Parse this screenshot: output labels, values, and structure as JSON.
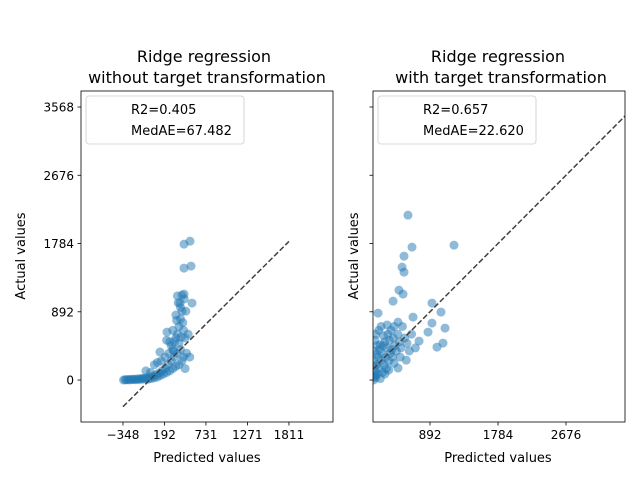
{
  "chart_data": [
    {
      "type": "scatter",
      "title": "Ridge regression\nwithout target transformation",
      "xlabel": "Predicted values",
      "ylabel": "Actual values",
      "xlim": [
        -894,
        2384
      ],
      "ylim": [
        -548,
        3777
      ],
      "xticks": [
        -348,
        192,
        731,
        1271,
        1811
      ],
      "yticks": [
        0,
        892,
        1784,
        2676,
        3568
      ],
      "legend": {
        "placement": "top-left",
        "entries": [
          "R2=0.405",
          "MedAE=67.482"
        ]
      },
      "point_color": "#1f77b4",
      "point_alpha": 0.5,
      "diagonal": {
        "from": -348,
        "to": 1811,
        "style": "dashed",
        "color": "#404040"
      },
      "points": [
        [
          -340,
          0
        ],
        [
          -320,
          5
        ],
        [
          -300,
          3
        ],
        [
          -280,
          8
        ],
        [
          -260,
          2
        ],
        [
          -240,
          10
        ],
        [
          -220,
          6
        ],
        [
          -200,
          12
        ],
        [
          -180,
          4
        ],
        [
          -160,
          15
        ],
        [
          -140,
          8
        ],
        [
          -120,
          20
        ],
        [
          -100,
          10
        ],
        [
          -80,
          25
        ],
        [
          -60,
          15
        ],
        [
          -40,
          30
        ],
        [
          -20,
          12
        ],
        [
          0,
          40
        ],
        [
          20,
          20
        ],
        [
          40,
          50
        ],
        [
          60,
          30
        ],
        [
          80,
          70
        ],
        [
          100,
          40
        ],
        [
          120,
          90
        ],
        [
          140,
          60
        ],
        [
          160,
          120
        ],
        [
          180,
          80
        ],
        [
          200,
          150
        ],
        [
          220,
          100
        ],
        [
          240,
          200
        ],
        [
          260,
          120
        ],
        [
          280,
          250
        ],
        [
          300,
          150
        ],
        [
          320,
          300
        ],
        [
          340,
          180
        ],
        [
          360,
          350
        ],
        [
          380,
          200
        ],
        [
          400,
          400
        ],
        [
          420,
          250
        ],
        [
          440,
          300
        ],
        [
          460,
          150
        ],
        [
          300,
          400
        ],
        [
          320,
          500
        ],
        [
          340,
          550
        ],
        [
          360,
          600
        ],
        [
          380,
          700
        ],
        [
          400,
          800
        ],
        [
          420,
          900
        ],
        [
          440,
          650
        ],
        [
          460,
          550
        ],
        [
          480,
          350
        ],
        [
          -50,
          120
        ],
        [
          10,
          100
        ],
        [
          60,
          200
        ],
        [
          100,
          230
        ],
        [
          150,
          250
        ],
        [
          200,
          300
        ],
        [
          250,
          350
        ],
        [
          280,
          450
        ],
        [
          133,
          366
        ],
        [
          225,
          627
        ],
        [
          220,
          520
        ],
        [
          300,
          650
        ],
        [
          340,
          850
        ],
        [
          370,
          1010
        ],
        [
          394,
          1006
        ],
        [
          550,
          1006
        ],
        [
          446,
          1123
        ],
        [
          420,
          1110
        ],
        [
          450,
          1060
        ],
        [
          470,
          900
        ],
        [
          500,
          600
        ],
        [
          520,
          300
        ],
        [
          446,
          1463
        ],
        [
          537,
          1489
        ],
        [
          446,
          1776
        ],
        [
          524,
          1815
        ],
        [
          350,
          780
        ],
        [
          400,
          950
        ],
        [
          360,
          1100
        ],
        [
          430,
          750
        ],
        [
          260,
          500
        ],
        [
          310,
          380
        ],
        [
          380,
          480
        ],
        [
          410,
          560
        ]
      ]
    },
    {
      "type": "scatter",
      "title": "Ridge regression\nwith target transformation",
      "xlabel": "Predicted values",
      "ylabel": "Actual values",
      "xlim": [
        144,
        3450
      ],
      "ylim": [
        -548,
        3777
      ],
      "xticks": [
        892,
        1784,
        2676
      ],
      "yticks": [
        0,
        892,
        1784,
        2676,
        3568
      ],
      "legend": {
        "placement": "top-left",
        "entries": [
          "R2=0.657",
          "MedAE=22.620"
        ]
      },
      "point_color": "#1f77b4",
      "point_alpha": 0.5,
      "diagonal": {
        "from": 144,
        "to": 3450,
        "style": "dashed",
        "color": "#404040"
      },
      "points": [
        [
          603,
          2155
        ],
        [
          656,
          1737
        ],
        [
          1207,
          1763
        ],
        [
          551,
          1619
        ],
        [
          525,
          1475
        ],
        [
          551,
          1410
        ],
        [
          485,
          1175
        ],
        [
          538,
          1123
        ],
        [
          407,
          1031
        ],
        [
          210,
          875
        ],
        [
          918,
          1006
        ],
        [
          1036,
          888
        ],
        [
          918,
          744
        ],
        [
          1089,
          679
        ],
        [
          866,
          627
        ],
        [
          748,
          509
        ],
        [
          1062,
          483
        ],
        [
          984,
          431
        ],
        [
          472,
          157
        ],
        [
          669,
          823
        ],
        [
          472,
          757
        ],
        [
          150,
          0
        ],
        [
          160,
          50
        ],
        [
          170,
          120
        ],
        [
          180,
          30
        ],
        [
          190,
          200
        ],
        [
          200,
          80
        ],
        [
          210,
          300
        ],
        [
          220,
          150
        ],
        [
          230,
          400
        ],
        [
          240,
          20
        ],
        [
          250,
          250
        ],
        [
          260,
          350
        ],
        [
          270,
          100
        ],
        [
          280,
          450
        ],
        [
          290,
          200
        ],
        [
          300,
          500
        ],
        [
          310,
          300
        ],
        [
          320,
          150
        ],
        [
          330,
          420
        ],
        [
          340,
          600
        ],
        [
          350,
          250
        ],
        [
          360,
          520
        ],
        [
          370,
          350
        ],
        [
          380,
          650
        ],
        [
          390,
          400
        ],
        [
          400,
          300
        ],
        [
          410,
          550
        ],
        [
          420,
          700
        ],
        [
          430,
          450
        ],
        [
          450,
          380
        ],
        [
          470,
          600
        ],
        [
          490,
          500
        ],
        [
          510,
          420
        ],
        [
          530,
          700
        ],
        [
          560,
          550
        ],
        [
          590,
          480
        ],
        [
          620,
          380
        ],
        [
          650,
          600
        ],
        [
          700,
          420
        ],
        [
          160,
          380
        ],
        [
          170,
          520
        ],
        [
          180,
          600
        ],
        [
          200,
          450
        ],
        [
          220,
          650
        ],
        [
          250,
          700
        ],
        [
          280,
          580
        ],
        [
          330,
          720
        ],
        [
          155,
          250
        ],
        [
          165,
          180
        ],
        [
          175,
          60
        ],
        [
          190,
          340
        ],
        [
          240,
          460
        ],
        [
          300,
          80
        ],
        [
          350,
          130
        ],
        [
          420,
          220
        ],
        [
          500,
          300
        ],
        [
          580,
          260
        ]
      ]
    }
  ]
}
